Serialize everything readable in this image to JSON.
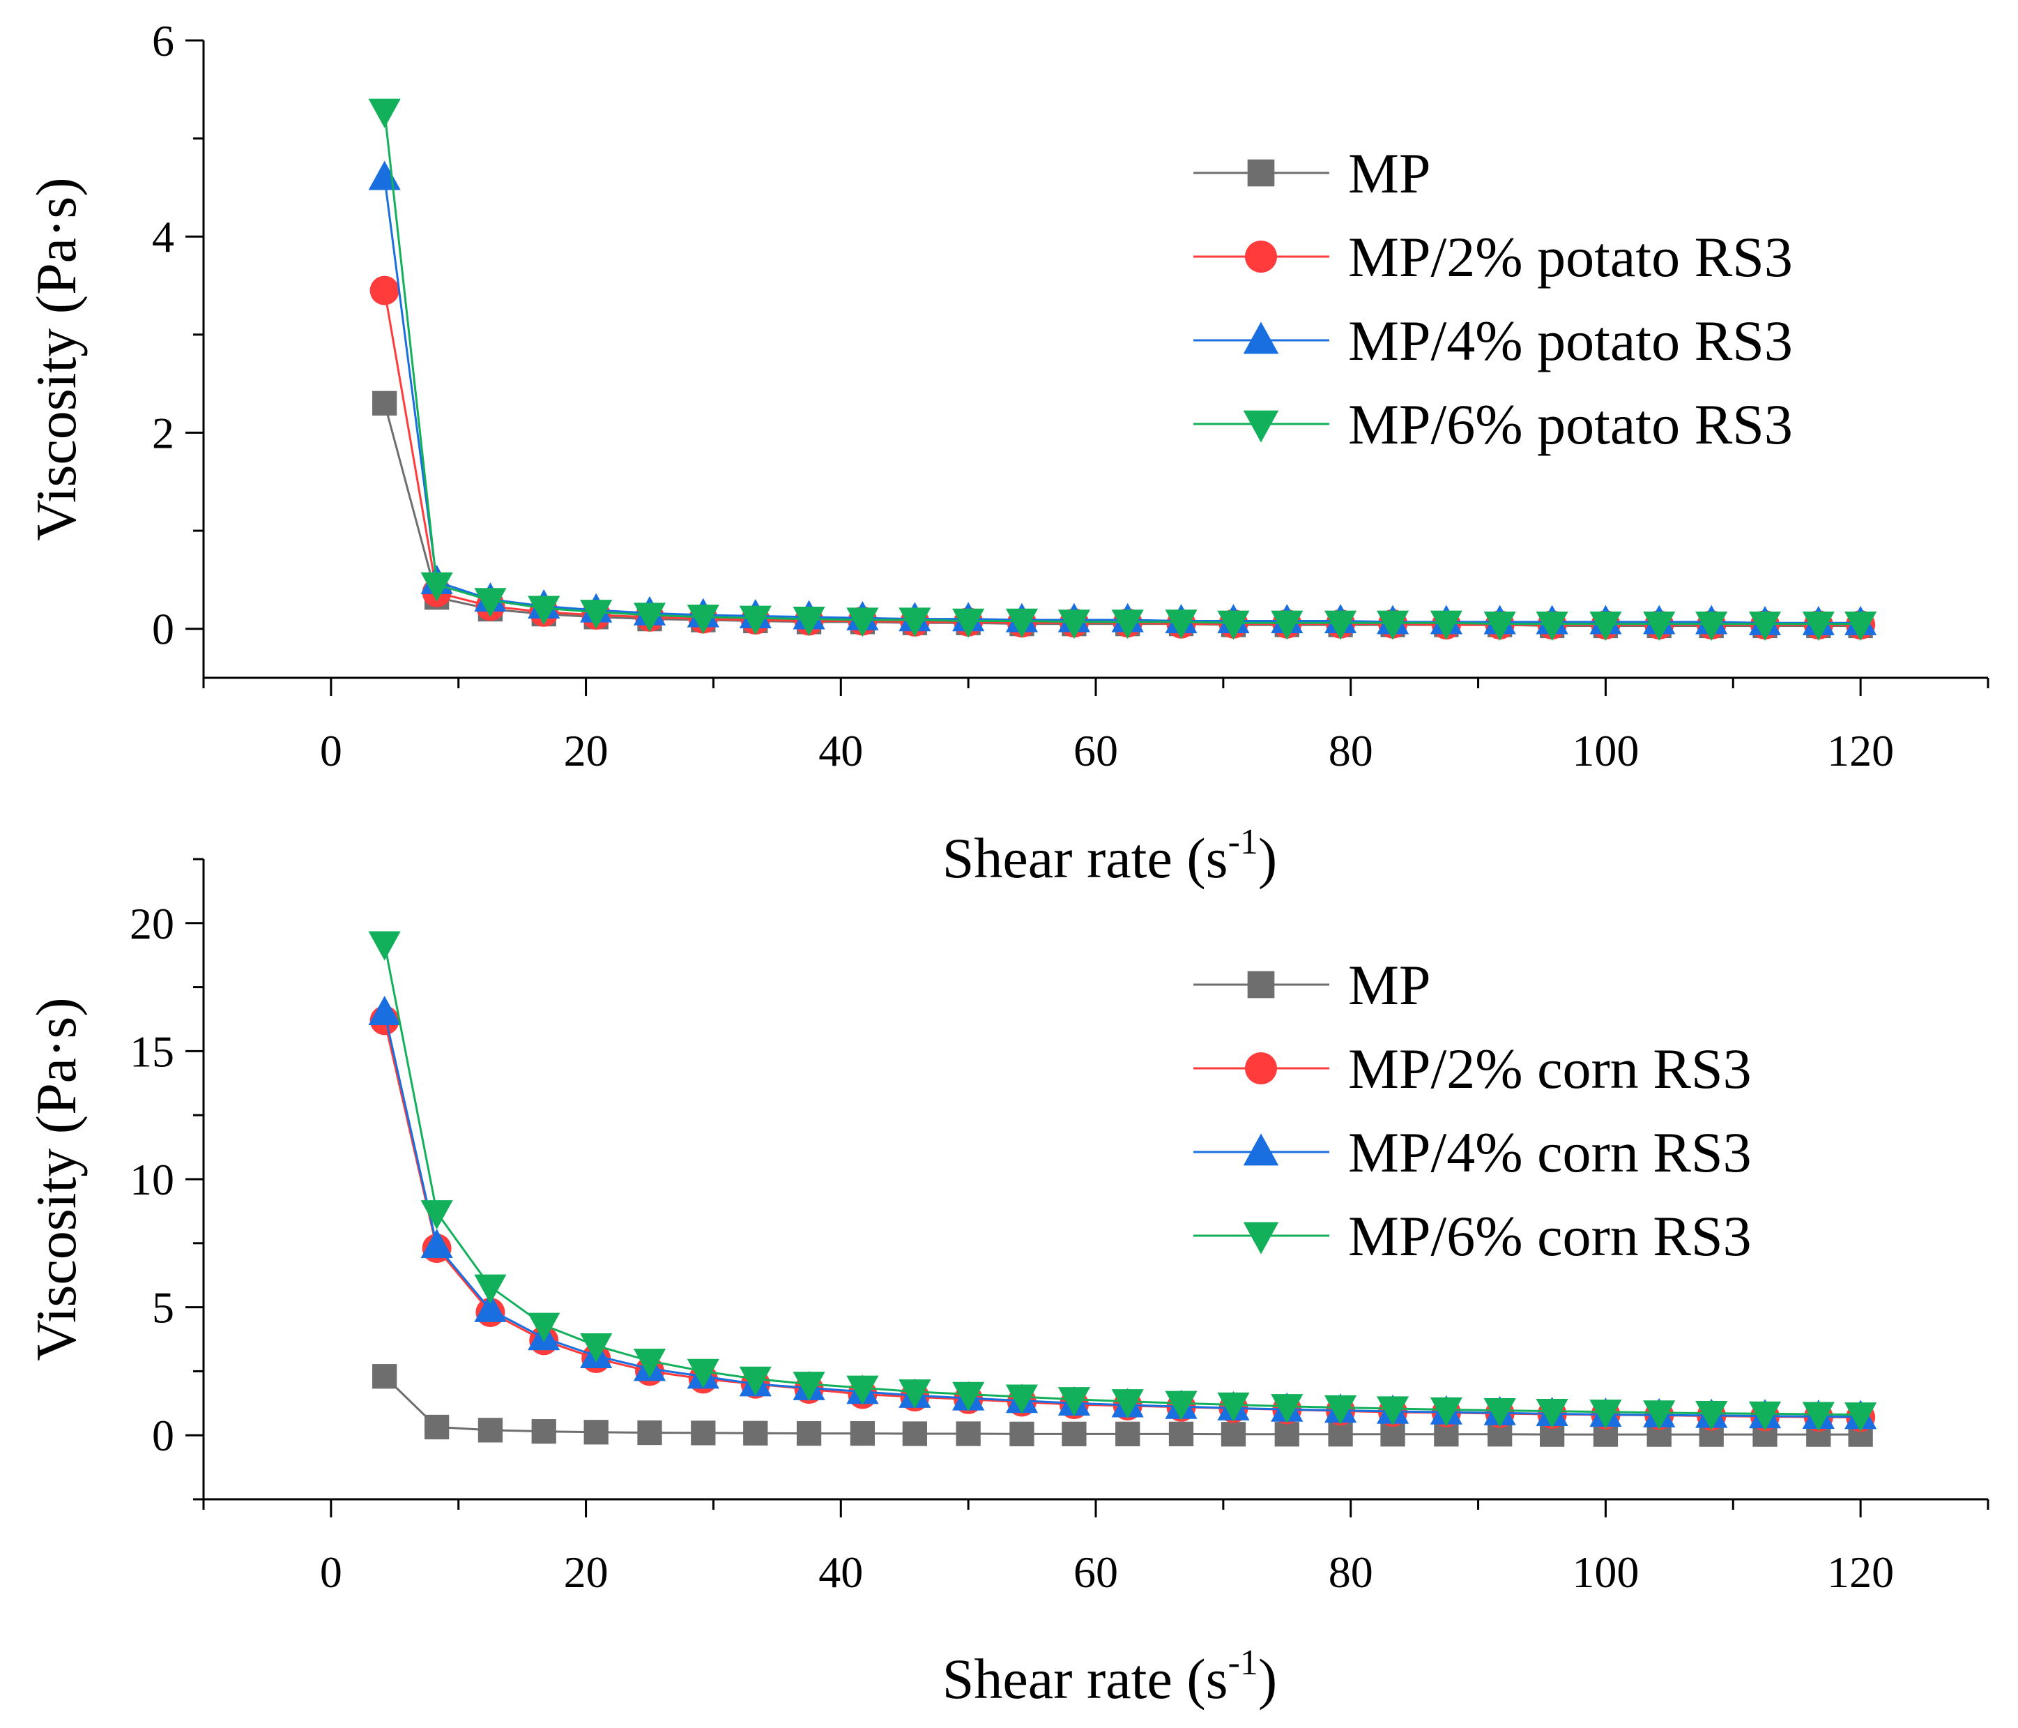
{
  "chart_data": [
    {
      "type": "line",
      "xlabel": "Shear rate (s",
      "xlabel_sup": "-1",
      "xlabel_close": ")",
      "ylabel": "Viscosity (Pa·s)",
      "xlim": [
        -10,
        130
      ],
      "ylim": [
        -0.5,
        6
      ],
      "xticks": [
        0,
        20,
        40,
        60,
        80,
        100,
        120
      ],
      "yticks": [
        0,
        2,
        4,
        6
      ],
      "legend_position": "top-right",
      "x": [
        4.2,
        8.3,
        12.5,
        16.7,
        20.8,
        25.0,
        29.2,
        33.3,
        37.5,
        41.7,
        45.8,
        50.0,
        54.2,
        58.3,
        62.5,
        66.7,
        70.8,
        75.0,
        79.2,
        83.3,
        87.5,
        91.7,
        95.8,
        100.0,
        104.2,
        108.3,
        112.5,
        116.7,
        120.0
      ],
      "series": [
        {
          "name": "MP",
          "color": "#6e6e6e",
          "marker": "square",
          "values": [
            2.3,
            0.32,
            0.2,
            0.15,
            0.12,
            0.1,
            0.09,
            0.08,
            0.07,
            0.07,
            0.06,
            0.06,
            0.05,
            0.05,
            0.05,
            0.05,
            0.04,
            0.04,
            0.04,
            0.04,
            0.04,
            0.04,
            0.03,
            0.03,
            0.03,
            0.03,
            0.03,
            0.03,
            0.03
          ]
        },
        {
          "name": "MP/2% potato RS3",
          "color": "#ff3b3b",
          "marker": "circle",
          "values": [
            3.45,
            0.37,
            0.23,
            0.17,
            0.14,
            0.12,
            0.1,
            0.09,
            0.08,
            0.08,
            0.07,
            0.07,
            0.06,
            0.06,
            0.06,
            0.05,
            0.05,
            0.05,
            0.05,
            0.05,
            0.04,
            0.04,
            0.04,
            0.04,
            0.04,
            0.04,
            0.04,
            0.04,
            0.04
          ]
        },
        {
          "name": "MP/4% potato RS3",
          "color": "#1a6fe0",
          "marker": "triangle-up",
          "values": [
            4.6,
            0.48,
            0.3,
            0.23,
            0.19,
            0.16,
            0.14,
            0.13,
            0.12,
            0.11,
            0.1,
            0.1,
            0.09,
            0.09,
            0.09,
            0.08,
            0.08,
            0.08,
            0.08,
            0.07,
            0.07,
            0.07,
            0.07,
            0.07,
            0.07,
            0.07,
            0.06,
            0.06,
            0.06
          ]
        },
        {
          "name": "MP/6% potato RS3",
          "color": "#12b05a",
          "marker": "triangle-down",
          "values": [
            5.28,
            0.45,
            0.29,
            0.21,
            0.17,
            0.14,
            0.12,
            0.11,
            0.1,
            0.09,
            0.09,
            0.08,
            0.08,
            0.07,
            0.07,
            0.07,
            0.06,
            0.06,
            0.06,
            0.06,
            0.06,
            0.05,
            0.05,
            0.05,
            0.05,
            0.05,
            0.05,
            0.05,
            0.05
          ]
        }
      ]
    },
    {
      "type": "line",
      "xlabel": "Shear rate (s",
      "xlabel_sup": "-1",
      "xlabel_close": ")",
      "ylabel": "Viscosity (Pa·s)",
      "xlim": [
        -10,
        130
      ],
      "ylim": [
        -2.5,
        22.5
      ],
      "xticks": [
        0,
        20,
        40,
        60,
        80,
        100,
        120
      ],
      "yticks": [
        0,
        5,
        10,
        15,
        20
      ],
      "legend_position": "top-right",
      "x": [
        4.2,
        8.3,
        12.5,
        16.7,
        20.8,
        25.0,
        29.2,
        33.3,
        37.5,
        41.7,
        45.8,
        50.0,
        54.2,
        58.3,
        62.5,
        66.7,
        70.8,
        75.0,
        79.2,
        83.3,
        87.5,
        91.7,
        95.8,
        100.0,
        104.2,
        108.3,
        112.5,
        116.7,
        120.0
      ],
      "series": [
        {
          "name": "MP",
          "color": "#6e6e6e",
          "marker": "square",
          "values": [
            2.3,
            0.32,
            0.2,
            0.15,
            0.12,
            0.1,
            0.09,
            0.08,
            0.07,
            0.07,
            0.06,
            0.06,
            0.05,
            0.05,
            0.05,
            0.05,
            0.04,
            0.04,
            0.04,
            0.04,
            0.04,
            0.04,
            0.03,
            0.03,
            0.03,
            0.03,
            0.03,
            0.03,
            0.03
          ]
        },
        {
          "name": "MP/2% corn RS3",
          "color": "#ff3b3b",
          "marker": "circle",
          "values": [
            16.2,
            7.3,
            4.8,
            3.7,
            3.0,
            2.5,
            2.2,
            2.0,
            1.8,
            1.6,
            1.5,
            1.4,
            1.3,
            1.2,
            1.15,
            1.1,
            1.05,
            1.0,
            0.95,
            0.9,
            0.88,
            0.85,
            0.82,
            0.8,
            0.78,
            0.75,
            0.73,
            0.71,
            0.7
          ]
        },
        {
          "name": "MP/4% corn RS3",
          "color": "#1a6fe0",
          "marker": "triangle-up",
          "values": [
            16.5,
            7.4,
            4.9,
            3.8,
            3.1,
            2.6,
            2.3,
            2.0,
            1.85,
            1.7,
            1.55,
            1.45,
            1.35,
            1.25,
            1.18,
            1.12,
            1.06,
            1.01,
            0.97,
            0.93,
            0.9,
            0.87,
            0.84,
            0.81,
            0.79,
            0.77,
            0.75,
            0.73,
            0.72
          ]
        },
        {
          "name": "MP/6% corn RS3",
          "color": "#12b05a",
          "marker": "triangle-down",
          "values": [
            19.2,
            8.7,
            5.8,
            4.3,
            3.5,
            2.9,
            2.5,
            2.2,
            2.0,
            1.85,
            1.7,
            1.6,
            1.5,
            1.4,
            1.32,
            1.25,
            1.19,
            1.13,
            1.08,
            1.04,
            1.0,
            0.97,
            0.94,
            0.91,
            0.88,
            0.86,
            0.84,
            0.82,
            0.8
          ]
        }
      ]
    }
  ]
}
